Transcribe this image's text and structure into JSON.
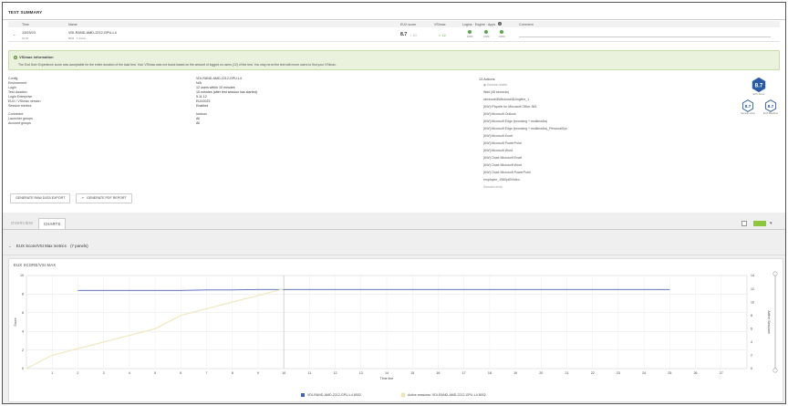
{
  "summary": {
    "title": "TEST SUMMARY",
    "columns": {
      "time": "Time",
      "name": "Name",
      "eux": "EUX score",
      "vsimax": "VSImax",
      "logins": "Logins · Engine · Apps",
      "comment": "Comment"
    },
    "row": {
      "date": "13/03/23",
      "time": "15:18",
      "name": "VDI-RAND-AMD-2212-GPU-L4",
      "sub": "8002 · 1 virtual",
      "eux_value": "8.7",
      "eux_max": "/ 10",
      "vsimax_value": "> 12",
      "status_labels": [
        "100%",
        "100%",
        "100%"
      ]
    },
    "banner": {
      "title": "VSImax information",
      "text": "The End User Experience score was acceptable for the entire duration of the load test. Your VSImax was not found based on the amount of logged on users (12) of the test. You may rerun the test with more users to find your VSImax."
    },
    "details": [
      {
        "label": "Config",
        "value": "VDI-RAND-AMD-2212-GPU-L4"
      },
      {
        "label": "Environment",
        "value": "N/A"
      },
      {
        "label": "Login",
        "value": "12 users within 10 minutes"
      },
      {
        "label": "Test duration",
        "value": "15 minutes (after test session has started)"
      },
      {
        "label": "Login Enterprise",
        "value": "5.11.12"
      },
      {
        "label": "EUX / VSImax version",
        "value": "EUX2023"
      },
      {
        "label": "Session metrics",
        "value": "Enabled"
      },
      {
        "label": "Connector",
        "value": "Ionicon"
      },
      {
        "label": "Launcher groups",
        "value": "All"
      },
      {
        "label": "Account groups",
        "value": "All"
      }
    ],
    "actions": {
      "title": "13 Actions",
      "items": [
        "Session starts",
        "Wait (45 seconds)",
        "windows\\$Windows\\$Uingfine_1",
        "[KW] IPicpete for Microsoft Office 365",
        "[KW] Microsoft Outlook",
        "[KW] Microsoft Edge (browsing + multimedia)",
        "[KW] Microsoft Edge (browsing + multimedia)_PersonalSys",
        "[KW] Microsoft Excel",
        "[KW] Microsoft PowerPoint",
        "[KW] Microsoft Word",
        "[KW] Close Microsoft Excel",
        "[KW] Close Microsoft Word",
        "[KW] Close Microsoft PowerPoint",
        "employee_1080p60Video",
        "Session ends"
      ]
    },
    "scores": {
      "main": {
        "value": "8.7",
        "label": "EUX Score"
      },
      "small": [
        {
          "value": "8.7",
          "label": "Sample score"
        },
        {
          "value": "8.7",
          "label": "EUX Baseline"
        }
      ],
      "hex_color": "#2b5aa6"
    },
    "buttons": {
      "raw_export": "GENERATE RAW DATA EXPORT",
      "pdf_report": "GENERATE PDF REPORT"
    }
  },
  "tabs": [
    "OVERVIEW",
    "CHARTS"
  ],
  "metrics_header": {
    "title": "EUX Score/VSI Max metrics",
    "count": "(7 panels)"
  },
  "panel_title": "EUX SCORE/VSI MAX",
  "chart_data": {
    "type": "line",
    "title": "",
    "xlabel": "Time line",
    "ylabel_left": "Score",
    "ylabel_right": "Active Sessions",
    "x_ticks": [
      1,
      2,
      3,
      4,
      5,
      6,
      7,
      8,
      9,
      10,
      11,
      12,
      13,
      14,
      15,
      16,
      17,
      18,
      19,
      20,
      21,
      22,
      23,
      24,
      25,
      26,
      27
    ],
    "y_left_ticks": [
      0,
      2,
      4,
      6,
      8,
      10
    ],
    "y_right_ticks": [
      0,
      2,
      4,
      6,
      8,
      10,
      12,
      14
    ],
    "xlim": [
      0,
      28
    ],
    "ylim_left": [
      0,
      10
    ],
    "ylim_right": [
      0,
      14
    ],
    "grid": true,
    "legend_position": "bottom",
    "series": [
      {
        "name": "VDI-RAND-AMD-2212-GPU-L4 8002",
        "axis": "left",
        "color": "#4a62b3",
        "x": [
          2,
          3,
          4,
          5,
          6,
          7,
          8,
          9,
          10,
          11,
          12,
          13,
          14,
          15,
          16,
          17,
          18,
          19,
          20,
          21,
          22,
          23,
          24,
          25
        ],
        "values": [
          8.4,
          8.4,
          8.4,
          8.4,
          8.4,
          8.45,
          8.45,
          8.5,
          8.5,
          8.5,
          8.5,
          8.5,
          8.5,
          8.5,
          8.5,
          8.5,
          8.5,
          8.5,
          8.5,
          8.5,
          8.5,
          8.5,
          8.5,
          8.5
        ]
      },
      {
        "name": "Active sessions: VDI-RAND-AMD-2212-GPU-L4 8002",
        "axis": "right",
        "color": "#efe8bf",
        "x": [
          0,
          1,
          2,
          3,
          4,
          5,
          6,
          7,
          8,
          9,
          10
        ],
        "values": [
          0,
          2,
          3,
          4,
          5,
          6,
          8,
          9,
          10,
          11,
          12
        ]
      }
    ]
  },
  "colors": {
    "accent_green": "#8cc63f",
    "status_green": "#5aa74a"
  }
}
